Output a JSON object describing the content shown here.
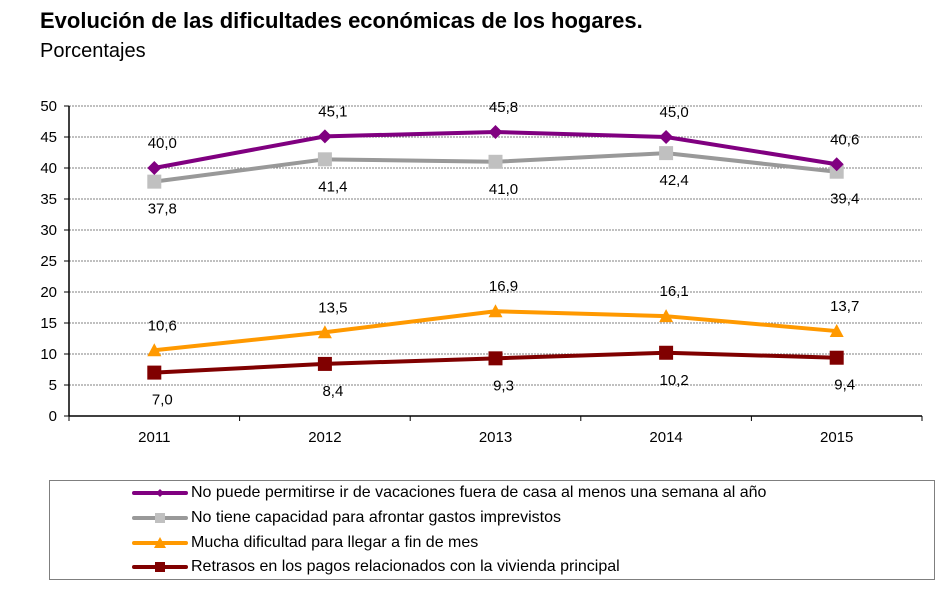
{
  "chart_data": {
    "type": "line",
    "title": "Evolución de las dificultades económicas de los hogares.",
    "subtitle": "Porcentajes",
    "xlabel": "",
    "ylabel": "",
    "categories": [
      "2011",
      "2012",
      "2013",
      "2014",
      "2015"
    ],
    "ylim": [
      0,
      50
    ],
    "yticks": [
      0,
      5,
      10,
      15,
      20,
      25,
      30,
      35,
      40,
      45,
      50
    ],
    "ytick_labels": [
      "0",
      "5",
      "10",
      "15",
      "20",
      "25",
      "30",
      "35",
      "40",
      "45",
      "50"
    ],
    "grid": true,
    "legend_position": "bottom",
    "series": [
      {
        "name": "No puede permitirse ir de vacaciones fuera de casa al menos una semana al año",
        "values": [
          40.0,
          45.1,
          45.8,
          45.0,
          40.6
        ],
        "labels": [
          "40,0",
          "45,1",
          "45,8",
          "45,0",
          "40,6"
        ],
        "label_position": "above",
        "color": "#800080",
        "marker": "diamond"
      },
      {
        "name": "No tiene capacidad para afrontar gastos imprevistos",
        "values": [
          37.8,
          41.4,
          41.0,
          42.4,
          39.4
        ],
        "labels": [
          "37,8",
          "41,4",
          "41,0",
          "42,4",
          "39,4"
        ],
        "label_position": "below",
        "color": "#999999",
        "marker_color": "#c0c0c0",
        "marker": "square"
      },
      {
        "name": "Mucha dificultad para llegar a fin de mes",
        "values": [
          10.6,
          13.5,
          16.9,
          16.1,
          13.7
        ],
        "labels": [
          "10,6",
          "13,5",
          "16,9",
          "16,1",
          "13,7"
        ],
        "label_position": "above",
        "color": "#ff9900",
        "marker": "triangle"
      },
      {
        "name": "Retrasos en los pagos relacionados con la vivienda principal",
        "values": [
          7.0,
          8.4,
          9.3,
          10.2,
          9.4
        ],
        "labels": [
          "7,0",
          "8,4",
          "9,3",
          "10,2",
          "9,4"
        ],
        "label_position": "below",
        "color": "#800000",
        "marker": "square"
      }
    ]
  }
}
